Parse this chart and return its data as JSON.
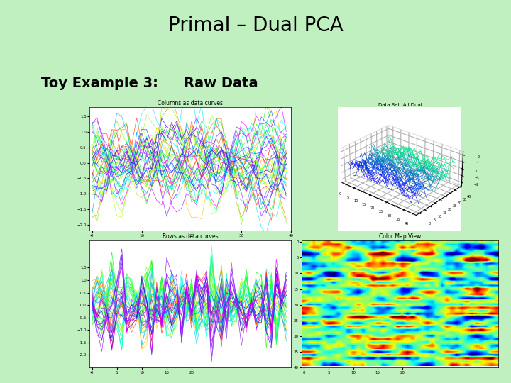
{
  "title": "Primal – Dual PCA",
  "subtitle_left": "Toy Example 3:",
  "subtitle_right": "Raw Data",
  "title_fontsize": 20,
  "subtitle_fontsize": 14,
  "bg_color": "#c0f0c0",
  "panel_bg": "#ffffff",
  "plot1_title": "Columns as data curves",
  "plot2_title": "Data Set: All Dual",
  "plot3_title": "Rows as data curves",
  "plot4_title": "Color Map View",
  "n_cols": 40,
  "n_rows": 40,
  "seed": 42
}
